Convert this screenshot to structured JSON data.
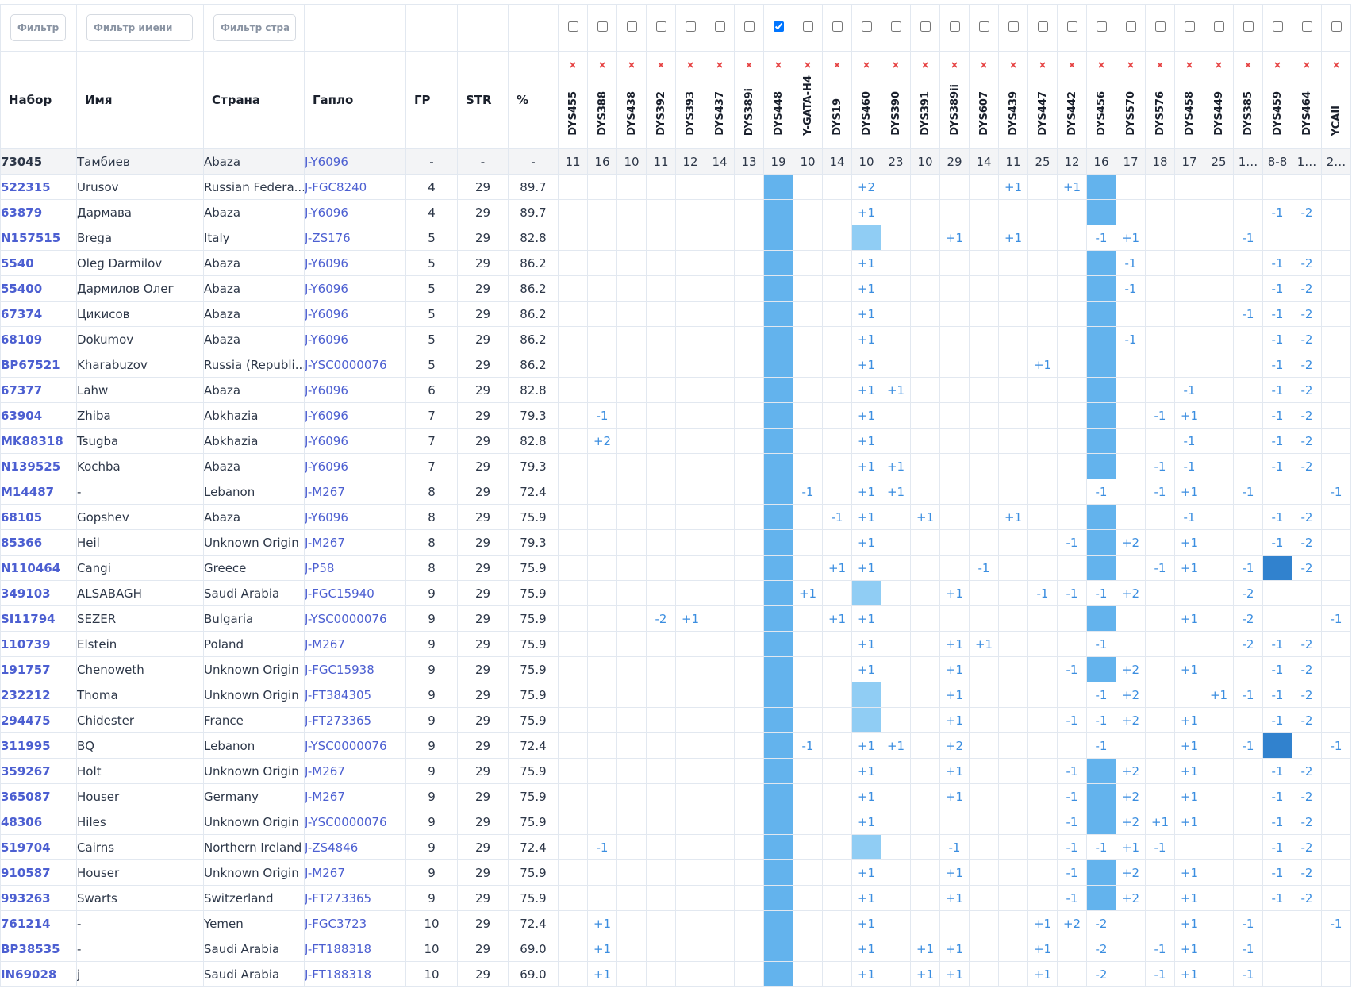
{
  "filters": {
    "set": "Фильтр н",
    "name": "Фильтр имени",
    "country": "Фильтр стран"
  },
  "table": {
    "headers": [
      "Набор",
      "Имя",
      "Страна",
      "Гапло",
      "ГР",
      "STR",
      "%"
    ],
    "markers": [
      "DYS455",
      "DYS388",
      "DYS438",
      "DYS392",
      "DYS393",
      "DYS437",
      "DYS389i",
      "DYS448",
      "Y-GATA-H4",
      "DYS19",
      "DYS460",
      "DYS390",
      "DYS391",
      "DYS389ii",
      "DYS607",
      "DYS439",
      "DYS447",
      "DYS442",
      "DYS456",
      "DYS570",
      "DYS576",
      "DYS458",
      "DYS449",
      "DYS385",
      "DYS459",
      "DYS464",
      "YCAII"
    ],
    "selected_marker": "DYS448",
    "selected_color": "#63b3ed",
    "reference": {
      "cells": [
        "73045",
        "Тамбиев",
        "Abaza",
        "J-Y6096",
        "-",
        "-",
        "-"
      ],
      "values": [
        "11",
        "16",
        "10",
        "11",
        "12",
        "14",
        "13",
        "19",
        "10",
        "14",
        "10",
        "23",
        "10",
        "29",
        "14",
        "11",
        "25",
        "12",
        "16",
        "17",
        "18",
        "17",
        "25",
        "1…",
        "8-8",
        "1…",
        "2…"
      ]
    },
    "rows": [
      {
        "cells": [
          "522315",
          "Urusov",
          "Russian Federa...",
          "J-FGC8240",
          "4",
          "29",
          "89.7"
        ],
        "diffs": {
          "DYS460": "+2",
          "DYS439": "+1",
          "DYS442": "+1"
        },
        "fills": {
          "DYS456": "#63b3ed"
        }
      },
      {
        "cells": [
          "63879",
          "Дармава",
          "Abaza",
          "J-Y6096",
          "4",
          "29",
          "89.7"
        ],
        "diffs": {
          "DYS460": "+1",
          "DYS459": "-1",
          "DYS464": "-2"
        },
        "fills": {
          "DYS456": "#63b3ed"
        }
      },
      {
        "cells": [
          "N157515",
          "Brega",
          "Italy",
          "J-ZS176",
          "5",
          "29",
          "82.8"
        ],
        "diffs": {
          "DYS389ii": "+1",
          "DYS439": "+1",
          "DYS456": "-1",
          "DYS570": "+1",
          "DYS385": "-1"
        },
        "fills": {
          "DYS460": "#90cdf4"
        }
      },
      {
        "cells": [
          "5540",
          "Oleg Darmilov",
          "Abaza",
          "J-Y6096",
          "5",
          "29",
          "86.2"
        ],
        "diffs": {
          "DYS460": "+1",
          "DYS570": "-1",
          "DYS459": "-1",
          "DYS464": "-2"
        },
        "fills": {
          "DYS456": "#63b3ed"
        }
      },
      {
        "cells": [
          "55400",
          "Дармилов Олег",
          "Abaza",
          "J-Y6096",
          "5",
          "29",
          "86.2"
        ],
        "diffs": {
          "DYS460": "+1",
          "DYS570": "-1",
          "DYS459": "-1",
          "DYS464": "-2"
        },
        "fills": {
          "DYS456": "#63b3ed"
        }
      },
      {
        "cells": [
          "67374",
          "Цикисов",
          "Abaza",
          "J-Y6096",
          "5",
          "29",
          "86.2"
        ],
        "diffs": {
          "DYS460": "+1",
          "DYS385": "-1",
          "DYS459": "-1",
          "DYS464": "-2"
        },
        "fills": {
          "DYS456": "#63b3ed"
        }
      },
      {
        "cells": [
          "68109",
          "Dokumov",
          "Abaza",
          "J-Y6096",
          "5",
          "29",
          "86.2"
        ],
        "diffs": {
          "DYS460": "+1",
          "DYS570": "-1",
          "DYS459": "-1",
          "DYS464": "-2"
        },
        "fills": {
          "DYS456": "#63b3ed"
        }
      },
      {
        "cells": [
          "BP67521",
          "Kharabuzov",
          "Russia (Republi...",
          "J-YSC0000076",
          "5",
          "29",
          "86.2"
        ],
        "diffs": {
          "DYS460": "+1",
          "DYS447": "+1",
          "DYS459": "-1",
          "DYS464": "-2"
        },
        "fills": {
          "DYS456": "#63b3ed"
        }
      },
      {
        "cells": [
          "67377",
          "Lahw",
          "Abaza",
          "J-Y6096",
          "6",
          "29",
          "82.8"
        ],
        "diffs": {
          "DYS460": "+1",
          "DYS390": "+1",
          "DYS458": "-1",
          "DYS459": "-1",
          "DYS464": "-2"
        },
        "fills": {
          "DYS456": "#63b3ed"
        }
      },
      {
        "cells": [
          "63904",
          "Zhiba",
          "Abkhazia",
          "J-Y6096",
          "7",
          "29",
          "79.3"
        ],
        "diffs": {
          "DYS388": "-1",
          "DYS460": "+1",
          "DYS576": "-1",
          "DYS458": "+1",
          "DYS459": "-1",
          "DYS464": "-2"
        },
        "fills": {
          "DYS456": "#63b3ed"
        }
      },
      {
        "cells": [
          "MK88318",
          "Tsugba",
          "Abkhazia",
          "J-Y6096",
          "7",
          "29",
          "82.8"
        ],
        "diffs": {
          "DYS388": "+2",
          "DYS460": "+1",
          "DYS458": "-1",
          "DYS459": "-1",
          "DYS464": "-2"
        },
        "fills": {
          "DYS456": "#63b3ed"
        }
      },
      {
        "cells": [
          "N139525",
          "Kochba",
          "Abaza",
          "J-Y6096",
          "7",
          "29",
          "79.3"
        ],
        "diffs": {
          "DYS460": "+1",
          "DYS390": "+1",
          "DYS576": "-1",
          "DYS458": "-1",
          "DYS459": "-1",
          "DYS464": "-2"
        },
        "fills": {
          "DYS456": "#63b3ed"
        }
      },
      {
        "cells": [
          "M14487",
          "-",
          "Lebanon",
          "J-M267",
          "8",
          "29",
          "72.4"
        ],
        "diffs": {
          "Y-GATA-H4": "-1",
          "DYS460": "+1",
          "DYS390": "+1",
          "DYS456": "-1",
          "DYS576": "-1",
          "DYS458": "+1",
          "DYS385": "-1",
          "YCAII": "-1"
        },
        "fills": {}
      },
      {
        "cells": [
          "68105",
          "Gopshev",
          "Abaza",
          "J-Y6096",
          "8",
          "29",
          "75.9"
        ],
        "diffs": {
          "DYS19": "-1",
          "DYS460": "+1",
          "DYS391": "+1",
          "DYS439": "+1",
          "DYS458": "-1",
          "DYS459": "-1",
          "DYS464": "-2"
        },
        "fills": {
          "DYS456": "#63b3ed"
        }
      },
      {
        "cells": [
          "85366",
          "Heil",
          "Unknown Origin",
          "J-M267",
          "8",
          "29",
          "79.3"
        ],
        "diffs": {
          "DYS460": "+1",
          "DYS442": "-1",
          "DYS570": "+2",
          "DYS458": "+1",
          "DYS459": "-1",
          "DYS464": "-2"
        },
        "fills": {
          "DYS456": "#63b3ed"
        }
      },
      {
        "cells": [
          "N110464",
          "Cangi",
          "Greece",
          "J-P58",
          "8",
          "29",
          "75.9"
        ],
        "diffs": {
          "DYS19": "+1",
          "DYS460": "+1",
          "DYS607": "-1",
          "DYS576": "-1",
          "DYS458": "+1",
          "DYS385": "-1",
          "DYS464": "-2"
        },
        "fills": {
          "DYS456": "#63b3ed",
          "DYS459": "#3182ce"
        }
      },
      {
        "cells": [
          "349103",
          "ALSABAGH",
          "Saudi Arabia",
          "J-FGC15940",
          "9",
          "29",
          "75.9"
        ],
        "diffs": {
          "Y-GATA-H4": "+1",
          "DYS389ii": "+1",
          "DYS447": "-1",
          "DYS442": "-1",
          "DYS456": "-1",
          "DYS570": "+2",
          "DYS385": "-2"
        },
        "fills": {
          "DYS460": "#90cdf4"
        }
      },
      {
        "cells": [
          "SI11794",
          "SEZER",
          "Bulgaria",
          "J-YSC0000076",
          "9",
          "29",
          "75.9"
        ],
        "diffs": {
          "DYS392": "-2",
          "DYS393": "+1",
          "DYS19": "+1",
          "DYS460": "+1",
          "DYS458": "+1",
          "DYS385": "-2",
          "YCAII": "-1"
        },
        "fills": {
          "DYS456": "#63b3ed"
        }
      },
      {
        "cells": [
          "110739",
          "Elstein",
          "Poland",
          "J-M267",
          "9",
          "29",
          "75.9"
        ],
        "diffs": {
          "DYS460": "+1",
          "DYS389ii": "+1",
          "DYS607": "+1",
          "DYS456": "-1",
          "DYS385": "-2",
          "DYS459": "-1",
          "DYS464": "-2"
        },
        "fills": {}
      },
      {
        "cells": [
          "191757",
          "Chenoweth",
          "Unknown Origin",
          "J-FGC15938",
          "9",
          "29",
          "75.9"
        ],
        "diffs": {
          "DYS460": "+1",
          "DYS389ii": "+1",
          "DYS442": "-1",
          "DYS570": "+2",
          "DYS458": "+1",
          "DYS459": "-1",
          "DYS464": "-2"
        },
        "fills": {
          "DYS456": "#63b3ed"
        }
      },
      {
        "cells": [
          "232212",
          "Thoma",
          "Unknown Origin",
          "J-FT384305",
          "9",
          "29",
          "75.9"
        ],
        "diffs": {
          "DYS389ii": "+1",
          "DYS456": "-1",
          "DYS570": "+2",
          "DYS449": "+1",
          "DYS385": "-1",
          "DYS459": "-1",
          "DYS464": "-2"
        },
        "fills": {
          "DYS460": "#90cdf4"
        }
      },
      {
        "cells": [
          "294475",
          "Chidester",
          "France",
          "J-FT273365",
          "9",
          "29",
          "75.9"
        ],
        "diffs": {
          "DYS389ii": "+1",
          "DYS442": "-1",
          "DYS456": "-1",
          "DYS570": "+2",
          "DYS458": "+1",
          "DYS459": "-1",
          "DYS464": "-2"
        },
        "fills": {
          "DYS460": "#90cdf4"
        }
      },
      {
        "cells": [
          "311995",
          "BQ",
          "Lebanon",
          "J-YSC0000076",
          "9",
          "29",
          "72.4"
        ],
        "diffs": {
          "Y-GATA-H4": "-1",
          "DYS460": "+1",
          "DYS390": "+1",
          "DYS389ii": "+2",
          "DYS456": "-1",
          "DYS458": "+1",
          "DYS385": "-1",
          "YCAII": "-1"
        },
        "fills": {
          "DYS459": "#3182ce"
        }
      },
      {
        "cells": [
          "359267",
          "Holt",
          "Unknown Origin",
          "J-M267",
          "9",
          "29",
          "75.9"
        ],
        "diffs": {
          "DYS460": "+1",
          "DYS389ii": "+1",
          "DYS442": "-1",
          "DYS570": "+2",
          "DYS458": "+1",
          "DYS459": "-1",
          "DYS464": "-2"
        },
        "fills": {
          "DYS456": "#63b3ed"
        }
      },
      {
        "cells": [
          "365087",
          "Houser",
          "Germany",
          "J-M267",
          "9",
          "29",
          "75.9"
        ],
        "diffs": {
          "DYS460": "+1",
          "DYS389ii": "+1",
          "DYS442": "-1",
          "DYS570": "+2",
          "DYS458": "+1",
          "DYS459": "-1",
          "DYS464": "-2"
        },
        "fills": {
          "DYS456": "#63b3ed"
        }
      },
      {
        "cells": [
          "48306",
          "Hiles",
          "Unknown Origin",
          "J-YSC0000076",
          "9",
          "29",
          "75.9"
        ],
        "diffs": {
          "DYS460": "+1",
          "DYS442": "-1",
          "DYS570": "+2",
          "DYS576": "+1",
          "DYS458": "+1",
          "DYS459": "-1",
          "DYS464": "-2"
        },
        "fills": {
          "DYS456": "#63b3ed"
        }
      },
      {
        "cells": [
          "519704",
          "Cairns",
          "Northern Ireland",
          "J-ZS4846",
          "9",
          "29",
          "72.4"
        ],
        "diffs": {
          "DYS388": "-1",
          "DYS389ii": "-1",
          "DYS442": "-1",
          "DYS456": "-1",
          "DYS570": "+1",
          "DYS576": "-1",
          "DYS459": "-1",
          "DYS464": "-2"
        },
        "fills": {
          "DYS460": "#90cdf4"
        }
      },
      {
        "cells": [
          "910587",
          "Houser",
          "Unknown Origin",
          "J-M267",
          "9",
          "29",
          "75.9"
        ],
        "diffs": {
          "DYS460": "+1",
          "DYS389ii": "+1",
          "DYS442": "-1",
          "DYS570": "+2",
          "DYS458": "+1",
          "DYS459": "-1",
          "DYS464": "-2"
        },
        "fills": {
          "DYS456": "#63b3ed"
        }
      },
      {
        "cells": [
          "993263",
          "Swarts",
          "Switzerland",
          "J-FT273365",
          "9",
          "29",
          "75.9"
        ],
        "diffs": {
          "DYS460": "+1",
          "DYS389ii": "+1",
          "DYS442": "-1",
          "DYS570": "+2",
          "DYS458": "+1",
          "DYS459": "-1",
          "DYS464": "-2"
        },
        "fills": {
          "DYS456": "#63b3ed"
        }
      },
      {
        "cells": [
          "761214",
          "-",
          "Yemen",
          "J-FGC3723",
          "10",
          "29",
          "72.4"
        ],
        "diffs": {
          "DYS388": "+1",
          "DYS460": "+1",
          "DYS447": "+1",
          "DYS442": "+2",
          "DYS456": "-2",
          "DYS458": "+1",
          "DYS385": "-1",
          "YCAII": "-1"
        },
        "fills": {}
      },
      {
        "cells": [
          "BP38535",
          "-",
          "Saudi Arabia",
          "J-FT188318",
          "10",
          "29",
          "69.0"
        ],
        "diffs": {
          "DYS388": "+1",
          "DYS460": "+1",
          "DYS391": "+1",
          "DYS389ii": "+1",
          "DYS447": "+1",
          "DYS456": "-2",
          "DYS576": "-1",
          "DYS458": "+1",
          "DYS385": "-1"
        },
        "fills": {}
      },
      {
        "cells": [
          "IN69028",
          "j",
          "Saudi Arabia",
          "J-FT188318",
          "10",
          "29",
          "69.0"
        ],
        "diffs": {
          "DYS388": "+1",
          "DYS460": "+1",
          "DYS391": "+1",
          "DYS389ii": "+1",
          "DYS447": "+1",
          "DYS456": "-2",
          "DYS576": "-1",
          "DYS458": "+1",
          "DYS385": "-1"
        },
        "fills": {}
      }
    ]
  }
}
